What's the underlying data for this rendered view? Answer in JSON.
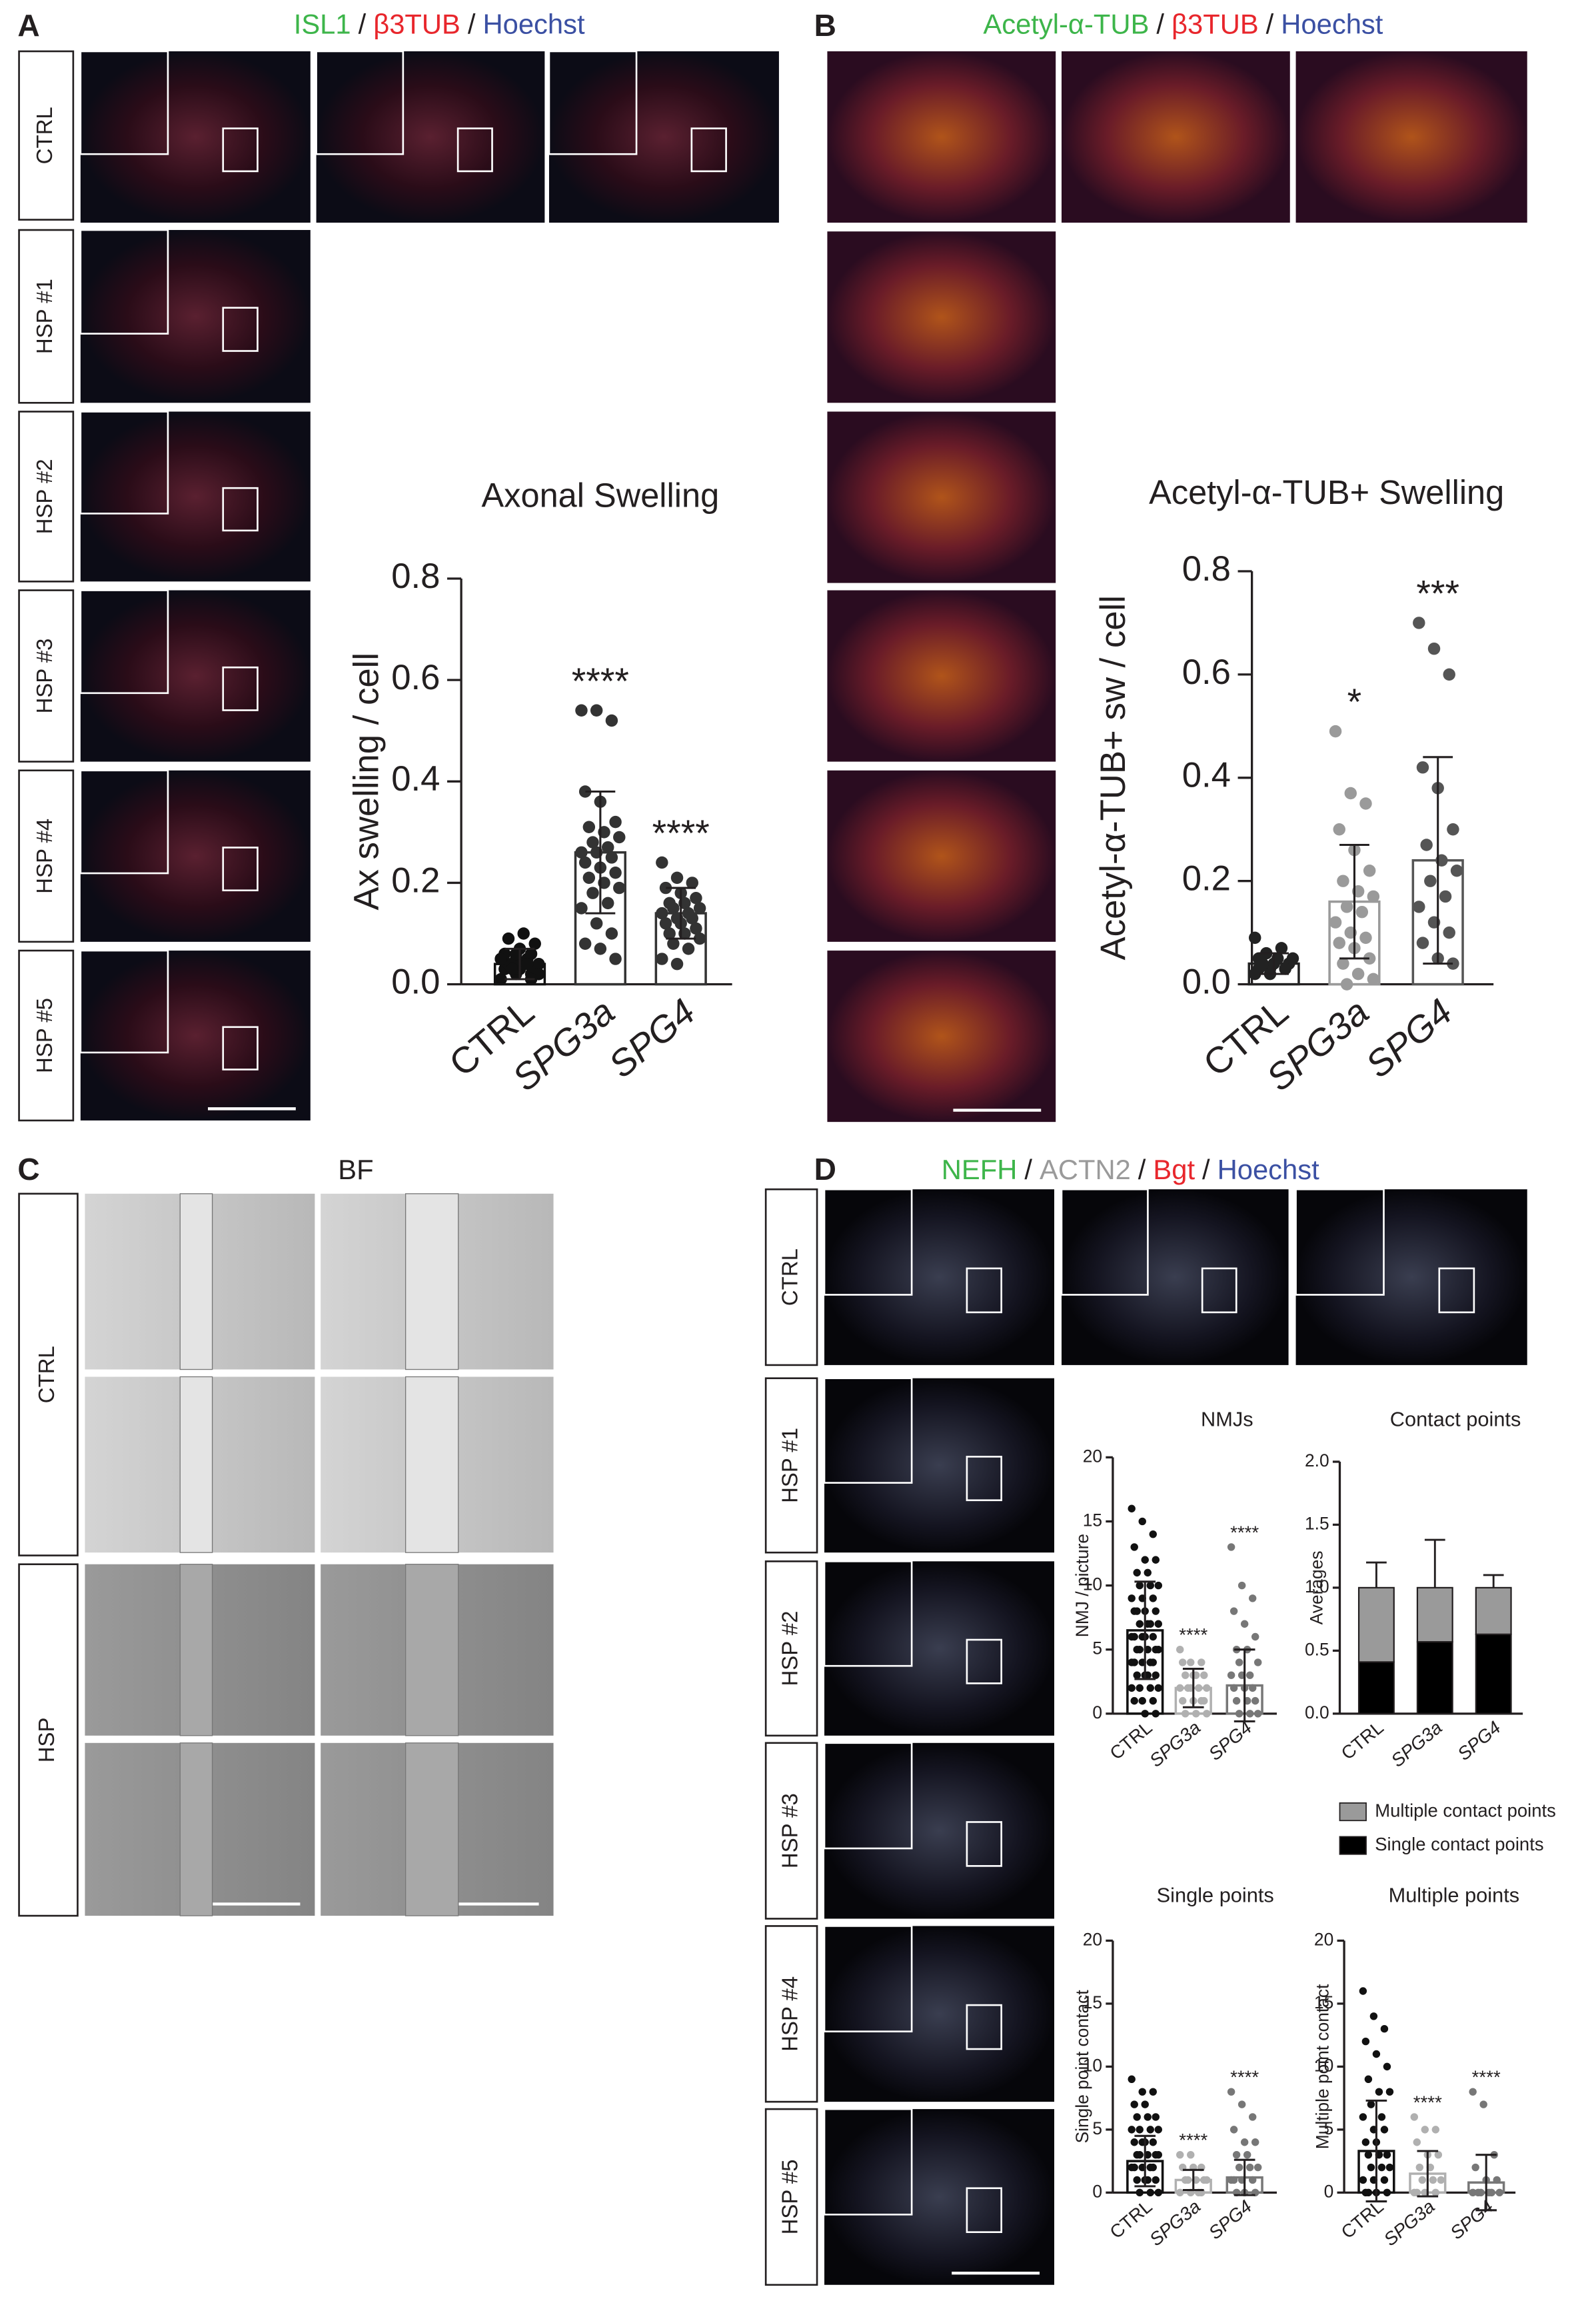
{
  "panels": [
    {
      "label": "A",
      "title": [
        {
          "text": "ISL1",
          "color": "#3db54a"
        },
        {
          "text": "/",
          "color": "#231f20"
        },
        {
          "text": "β3TUB",
          "color": "#e8262c"
        },
        {
          "text": "/",
          "color": "#231f20"
        },
        {
          "text": "Hoechst",
          "color": "#3b50a3"
        }
      ],
      "rows": [
        "CTRL",
        "HSP #1",
        "HSP #2",
        "HSP #3",
        "HSP #4",
        "HSP #5"
      ]
    },
    {
      "label": "B",
      "title": [
        {
          "text": "Acetyl-α-TUB",
          "color": "#3db54a"
        },
        {
          "text": "/",
          "color": "#231f20"
        },
        {
          "text": "β3TUB",
          "color": "#e8262c"
        },
        {
          "text": "/",
          "color": "#231f20"
        },
        {
          "text": "Hoechst",
          "color": "#3b50a3"
        }
      ]
    },
    {
      "label": "C",
      "title": [
        {
          "text": "BF",
          "color": "#231f20"
        }
      ],
      "rows": [
        "CTRL",
        "HSP"
      ]
    },
    {
      "label": "D",
      "title": [
        {
          "text": "NEFH",
          "color": "#3db54a"
        },
        {
          "text": "/",
          "color": "#231f20"
        },
        {
          "text": "ACTN2",
          "color": "#9a9a9a"
        },
        {
          "text": "/",
          "color": "#231f20"
        },
        {
          "text": "Bgt",
          "color": "#e8262c"
        },
        {
          "text": "/",
          "color": "#231f20"
        },
        {
          "text": "Hoechst",
          "color": "#3b50a3"
        }
      ],
      "rows": [
        "CTRL",
        "HSP #1",
        "HSP #2",
        "HSP #3",
        "HSP #4",
        "HSP #5"
      ]
    }
  ],
  "chart_data": [
    {
      "type": "dotbar",
      "title": "Axonal Swelling",
      "ylabel": "Ax swelling / cell",
      "categories": [
        "CTRL",
        "SPG3a",
        "SPG4"
      ],
      "colors": [
        "#111111",
        "#333333",
        "#333333"
      ],
      "values": [
        0.04,
        0.26,
        0.14
      ],
      "errors": [
        0.03,
        0.12,
        0.05
      ],
      "points": [
        [
          0.01,
          0.02,
          0.02,
          0.03,
          0.03,
          0.03,
          0.04,
          0.04,
          0.04,
          0.04,
          0.05,
          0.05,
          0.05,
          0.06,
          0.06,
          0.07,
          0.08,
          0.09,
          0.1,
          0.02,
          0.03,
          0.04,
          0.05,
          0.06,
          0.01
        ],
        [
          0.54,
          0.54,
          0.52,
          0.38,
          0.36,
          0.32,
          0.31,
          0.3,
          0.29,
          0.28,
          0.27,
          0.26,
          0.26,
          0.25,
          0.24,
          0.23,
          0.22,
          0.21,
          0.2,
          0.19,
          0.18,
          0.16,
          0.15,
          0.12,
          0.1,
          0.08,
          0.07,
          0.05
        ],
        [
          0.24,
          0.21,
          0.2,
          0.19,
          0.18,
          0.17,
          0.16,
          0.16,
          0.15,
          0.15,
          0.14,
          0.14,
          0.13,
          0.13,
          0.12,
          0.12,
          0.11,
          0.1,
          0.1,
          0.09,
          0.08,
          0.07,
          0.05,
          0.04
        ]
      ],
      "significance": [
        null,
        "****",
        "****"
      ],
      "ylim": [
        0,
        0.8
      ],
      "yticks": [
        {
          "value": 0,
          "label": "0.0"
        },
        0.2,
        0.4,
        0.6,
        0.8
      ]
    },
    {
      "type": "dotbar",
      "title": "Acetyl-α-TUB+ Swelling",
      "ylabel": "Acetyl-α-TUB+  sw / cell",
      "categories": [
        "CTRL",
        "SPG3a",
        "SPG4"
      ],
      "colors": [
        "#222222",
        "#9a9a9a",
        "#555555"
      ],
      "values": [
        0.04,
        0.16,
        0.24
      ],
      "errors": [
        0.02,
        0.11,
        0.2
      ],
      "points": [
        [
          0.02,
          0.03,
          0.03,
          0.03,
          0.04,
          0.04,
          0.04,
          0.05,
          0.05,
          0.06,
          0.07,
          0.09,
          0.02,
          0.03,
          0.05
        ],
        [
          0.49,
          0.37,
          0.35,
          0.3,
          0.26,
          0.22,
          0.2,
          0.18,
          0.17,
          0.15,
          0.14,
          0.12,
          0.1,
          0.09,
          0.08,
          0.07,
          0.05,
          0.04,
          0.02,
          0.01,
          0
        ],
        [
          0.7,
          0.65,
          0.6,
          0.42,
          0.38,
          0.3,
          0.27,
          0.24,
          0.22,
          0.2,
          0.17,
          0.15,
          0.12,
          0.1,
          0.08,
          0.05,
          0.04
        ]
      ],
      "significance": [
        null,
        "*",
        "***"
      ],
      "ylim": [
        0,
        0.8
      ],
      "yticks": [
        {
          "value": 0,
          "label": "0.0"
        },
        0.2,
        0.4,
        0.6,
        0.8
      ]
    },
    {
      "type": "dotbar",
      "title": "NMJs",
      "ylabel": "NMJ / picture",
      "categories": [
        "CTRL",
        "SPG3a",
        "SPG4"
      ],
      "colors": [
        "#111111",
        "#b0b0b0",
        "#777777"
      ],
      "values": [
        6.5,
        2,
        2.2
      ],
      "errors": [
        3.8,
        1.5,
        2.8
      ],
      "points": [
        [
          16,
          15,
          14,
          13,
          12,
          12,
          11,
          11,
          10,
          10,
          10,
          9,
          9,
          9,
          8,
          8,
          8,
          8,
          7,
          7,
          7,
          7,
          6,
          6,
          6,
          6,
          6,
          5,
          5,
          5,
          5,
          5,
          4,
          4,
          4,
          4,
          4,
          3,
          3,
          3,
          3,
          2,
          2,
          2,
          2,
          1,
          1,
          1,
          0,
          0
        ],
        [
          5,
          4,
          4,
          4,
          3,
          3,
          3,
          3,
          2,
          2,
          2,
          2,
          2,
          1,
          1,
          1,
          1,
          0,
          0,
          0
        ],
        [
          13,
          10,
          9,
          8,
          7,
          6,
          5,
          5,
          4,
          4,
          3,
          3,
          3,
          2,
          2,
          2,
          1,
          1,
          1,
          0,
          0,
          0
        ]
      ],
      "significance": [
        null,
        "****",
        "****"
      ],
      "ylim": [
        0,
        20
      ],
      "yticks": [
        0,
        5,
        10,
        15,
        20
      ]
    },
    {
      "type": "stacked",
      "title": "Contact points",
      "ylabel": "Averages",
      "categories": [
        "CTRL",
        "SPG3a",
        "SPG4"
      ],
      "legend": "bottom",
      "series": [
        {
          "name": "Single contact points",
          "color": "#000000",
          "values": [
            0.41,
            0.57,
            0.63
          ],
          "errors": [
            0.21,
            0.38,
            0.12
          ]
        },
        {
          "name": "Multiple contact points",
          "color": "#9a9a9a",
          "values": [
            0.59,
            0.43,
            0.37
          ],
          "errors": [
            0.2,
            0.38,
            0.1
          ]
        }
      ],
      "ylim": [
        0,
        2
      ],
      "yticks": [
        {
          "value": 0,
          "label": "0.0"
        },
        0.5,
        {
          "value": 1,
          "label": "1.0"
        },
        1.5,
        {
          "value": 2,
          "label": "2.0"
        }
      ]
    },
    {
      "type": "dotbar",
      "title": "Single points",
      "ylabel": "Single  point  contact",
      "categories": [
        "CTRL",
        "SPG3a",
        "SPG4"
      ],
      "colors": [
        "#111111",
        "#b0b0b0",
        "#777777"
      ],
      "values": [
        2.5,
        1,
        1.2
      ],
      "errors": [
        2,
        0.8,
        1.4
      ],
      "points": [
        [
          9,
          8,
          8,
          7,
          7,
          6,
          6,
          6,
          5,
          5,
          5,
          5,
          4,
          4,
          4,
          4,
          3,
          3,
          3,
          3,
          3,
          2,
          2,
          2,
          2,
          2,
          1,
          1,
          1,
          1,
          0,
          0,
          0
        ],
        [
          3,
          3,
          2,
          2,
          2,
          1,
          1,
          1,
          1,
          1,
          0,
          0,
          0,
          0
        ],
        [
          8,
          7,
          6,
          5,
          4,
          4,
          3,
          3,
          2,
          2,
          2,
          1,
          1,
          1,
          1,
          0,
          0,
          0
        ]
      ],
      "significance": [
        null,
        "****",
        "****"
      ],
      "ylim": [
        0,
        20
      ],
      "yticks": [
        0,
        5,
        10,
        15,
        20
      ]
    },
    {
      "type": "dotbar",
      "title": "Multiple points",
      "ylabel": "Multiple  point  contact",
      "categories": [
        "CTRL",
        "SPG3a",
        "SPG4"
      ],
      "colors": [
        "#111111",
        "#b0b0b0",
        "#777777"
      ],
      "values": [
        3.3,
        1.5,
        0.8
      ],
      "errors": [
        4,
        1.8,
        2.2
      ],
      "points": [
        [
          16,
          14,
          13,
          12,
          11,
          10,
          9,
          8,
          8,
          7,
          6,
          6,
          5,
          5,
          4,
          4,
          3,
          3,
          3,
          2,
          2,
          2,
          1,
          1,
          1,
          0,
          0,
          0,
          0
        ],
        [
          6,
          5,
          5,
          4,
          3,
          3,
          2,
          2,
          1,
          1,
          1,
          0,
          0,
          0,
          0
        ],
        [
          8,
          7,
          3,
          2,
          1,
          1,
          0,
          0,
          0,
          0,
          0,
          0
        ]
      ],
      "significance": [
        null,
        "****",
        "****"
      ],
      "ylim": [
        0,
        20
      ],
      "yticks": [
        0,
        5,
        10,
        15,
        20
      ]
    }
  ]
}
